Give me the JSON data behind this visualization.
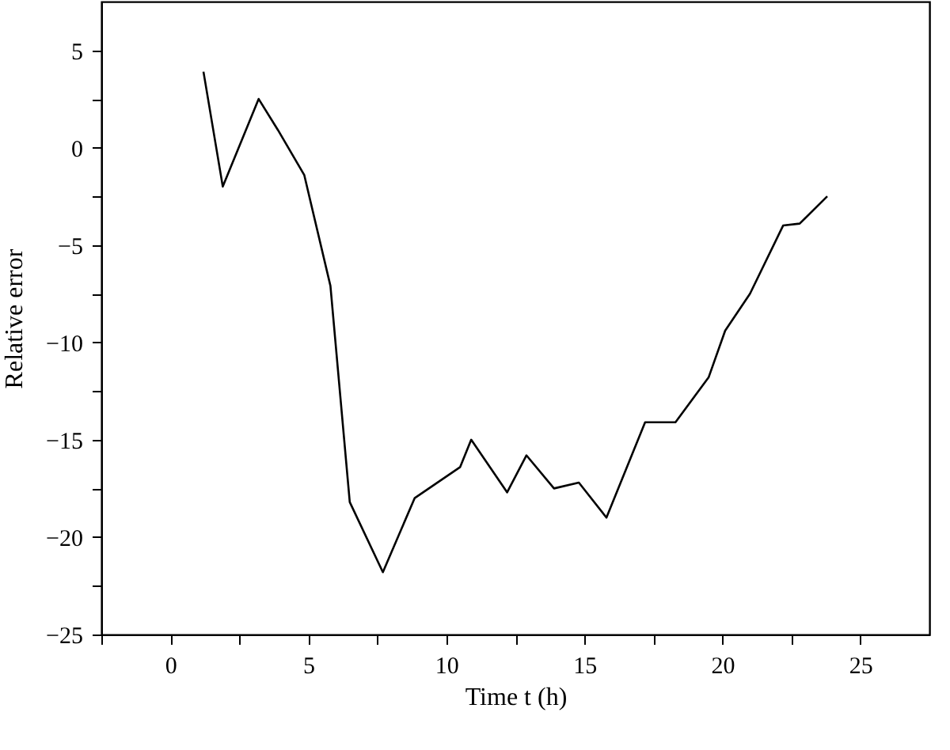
{
  "chart_data": {
    "type": "line",
    "xlabel": "Time t (h)",
    "ylabel": "Relative error",
    "x": [
      1.2,
      1.9,
      3.2,
      3.9,
      4.85,
      5.8,
      6.5,
      7.7,
      8.85,
      10.5,
      10.9,
      12.2,
      12.9,
      13.9,
      14.8,
      15.8,
      17.2,
      18.3,
      19.5,
      20.1,
      21.0,
      22.2,
      22.8,
      23.8
    ],
    "series": [
      {
        "color": "#000000",
        "values": [
          3.9,
          -2.0,
          2.5,
          0.9,
          -1.4,
          -7.1,
          -18.2,
          -21.8,
          -18.0,
          -16.4,
          -15.0,
          -17.7,
          -15.8,
          -17.5,
          -17.2,
          -19.0,
          -14.1,
          -14.1,
          -11.8,
          -9.4,
          -7.5,
          -4.0,
          -3.9,
          -2.5
        ]
      }
    ],
    "xlim": [
      -2.5,
      27.5
    ],
    "ylim": [
      -25,
      7.5
    ],
    "xticks": [
      {
        "value": -2.5,
        "label": null
      },
      0,
      {
        "value": 2.5,
        "label": null
      },
      5,
      {
        "value": 7.5,
        "label": null
      },
      10,
      {
        "value": 12.5,
        "label": null
      },
      15,
      {
        "value": 17.5,
        "label": null
      },
      20,
      {
        "value": 22.5,
        "label": null
      },
      25
    ],
    "yticks": [
      -25,
      {
        "value": -22.5,
        "label": null
      },
      -20,
      {
        "value": -17.5,
        "label": null
      },
      -15,
      {
        "value": -12.5,
        "label": null
      },
      -10,
      {
        "value": -7.5,
        "label": null
      },
      -5,
      {
        "value": -2.5,
        "label": null
      },
      0,
      {
        "value": 2.5,
        "label": null
      },
      5
    ],
    "grid": false,
    "marker": "none",
    "line_style": "solid"
  }
}
